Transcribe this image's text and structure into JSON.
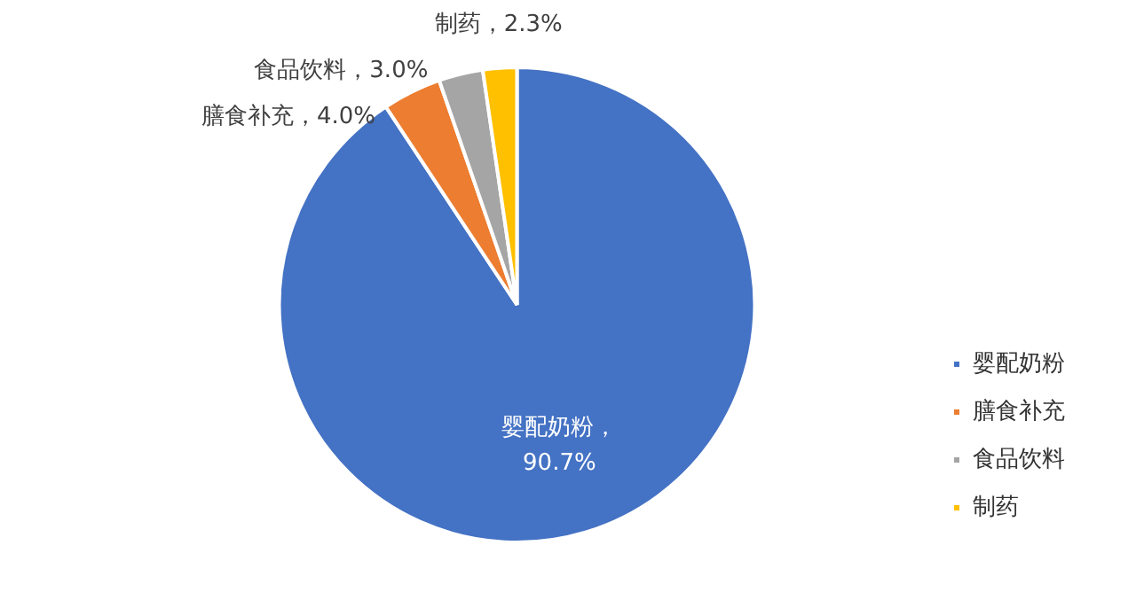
{
  "chart_data": {
    "type": "pie",
    "categories": [
      "婴配奶粉",
      "膳食补充",
      "食品饮料",
      "制药"
    ],
    "values": [
      90.7,
      4.0,
      3.0,
      2.3
    ],
    "colors": [
      "#4472c4",
      "#ed7d31",
      "#a5a5a5",
      "#ffc000"
    ],
    "value_labels": [
      "婴配奶粉，90.7%",
      "膳食补充，4.0%",
      "食品饮料，3.0%",
      "制药，2.3%"
    ],
    "legend": "right"
  }
}
